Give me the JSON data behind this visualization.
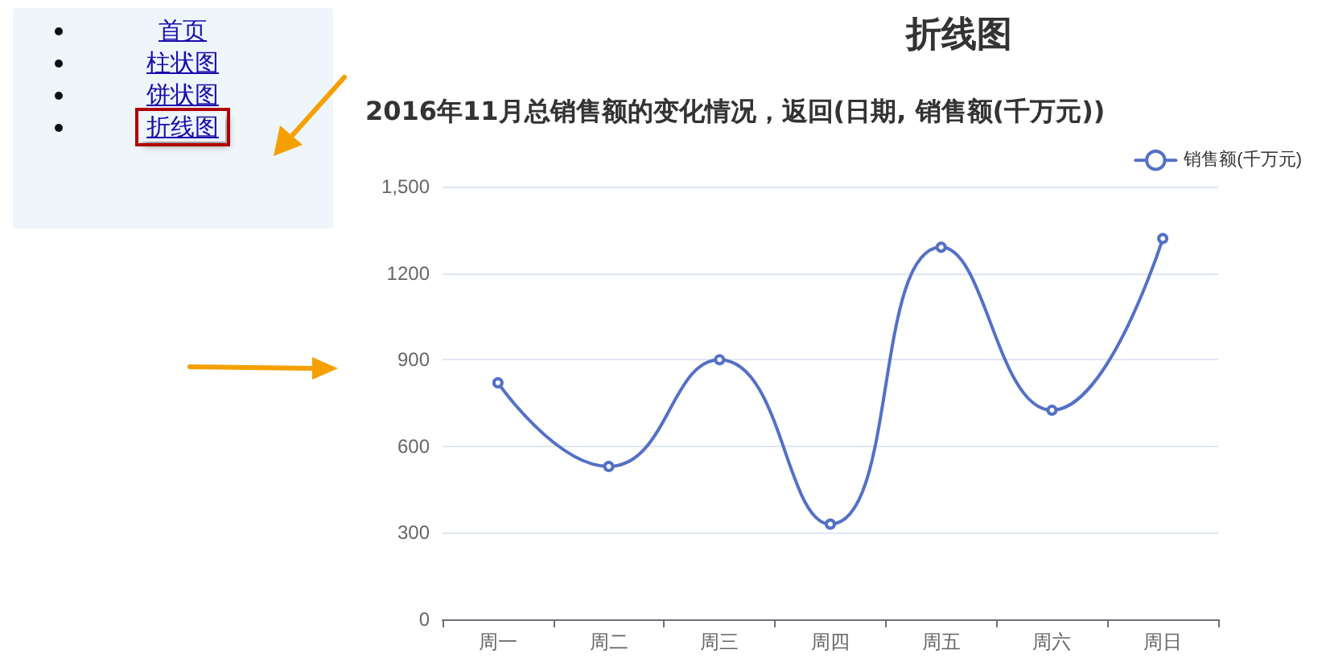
{
  "chart_data": {
    "type": "line",
    "title": "折线图",
    "subtitle": "2016年11月总销售额的变化情况，返回(日期, 销售额(千万元))",
    "annotations": [
      "首页",
      "柱状图",
      "饼状图",
      "折线图"
    ],
    "categories": [
      "周一",
      "周二",
      "周三",
      "周四",
      "周五",
      "周六",
      "周日"
    ],
    "series": [
      {
        "name": "销售额(千万元)",
        "color": "#5470c6",
        "values": [
          820,
          530,
          900,
          330,
          1290,
          725,
          1320
        ]
      }
    ],
    "ylim": [
      0,
      1500
    ],
    "yticks": [
      0,
      300,
      600,
      900,
      1200,
      {
        "value": 1500,
        "label": "1,500"
      }
    ],
    "grid": "y",
    "legend": "top right",
    "marker": "circle",
    "line_style": "solid"
  }
}
